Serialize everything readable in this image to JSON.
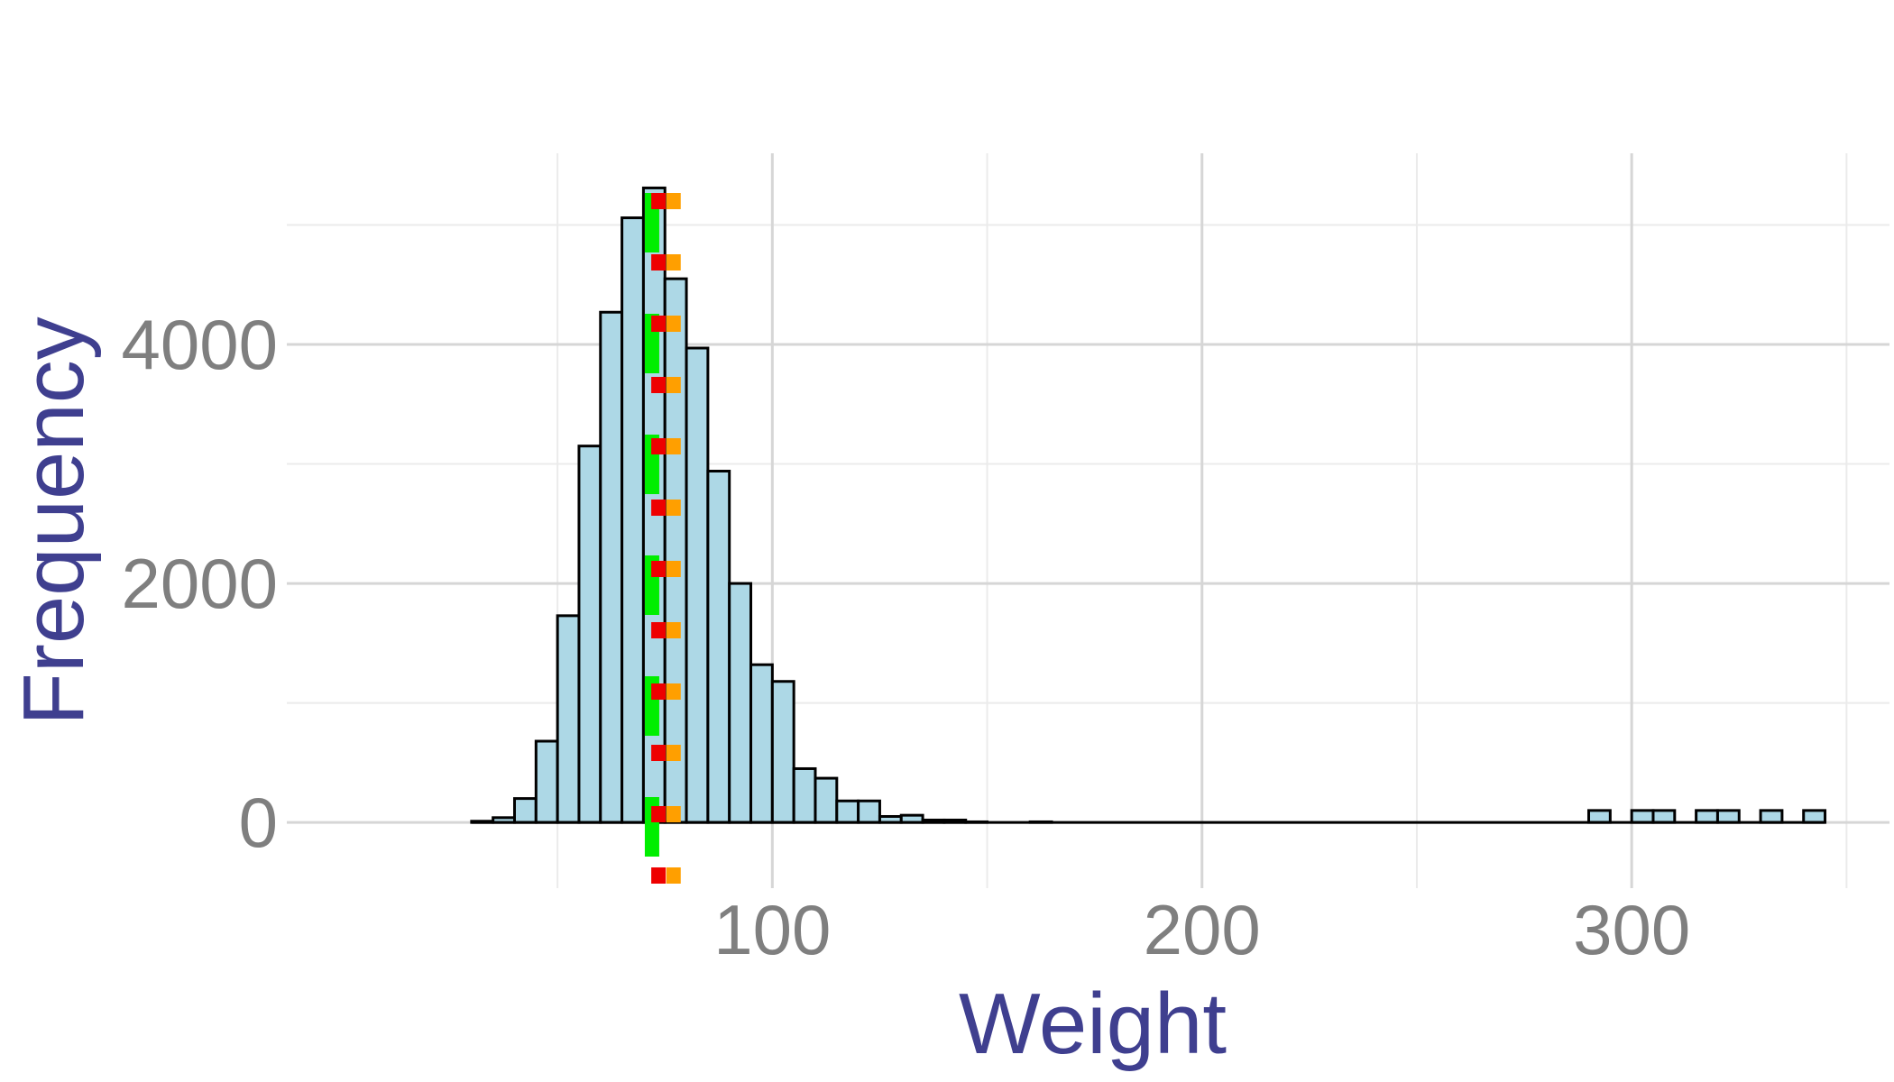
{
  "chart_data": {
    "type": "bar",
    "title": "",
    "xlabel": "Weight",
    "ylabel": "Frequency",
    "xlim": [
      -13,
      360
    ],
    "ylim": [
      -550,
      5600
    ],
    "x_ticks": [
      100,
      200,
      300
    ],
    "x_tick_labels": [
      "100",
      "200",
      "300"
    ],
    "y_ticks": [
      0,
      2000,
      4000
    ],
    "y_tick_labels": [
      "0",
      "2000",
      "4000"
    ],
    "x_minor_gridlines": [
      50,
      150,
      250,
      350
    ],
    "y_minor_gridlines": [
      1000,
      3000,
      5000
    ],
    "grid": true,
    "bin_width": 5,
    "bins": [
      {
        "start": 30,
        "count": 10
      },
      {
        "start": 35,
        "count": 40
      },
      {
        "start": 40,
        "count": 200
      },
      {
        "start": 45,
        "count": 680
      },
      {
        "start": 50,
        "count": 1730
      },
      {
        "start": 55,
        "count": 3150
      },
      {
        "start": 60,
        "count": 4270
      },
      {
        "start": 65,
        "count": 5060
      },
      {
        "start": 70,
        "count": 5310
      },
      {
        "start": 75,
        "count": 4550
      },
      {
        "start": 80,
        "count": 3970
      },
      {
        "start": 85,
        "count": 2940
      },
      {
        "start": 90,
        "count": 2000
      },
      {
        "start": 95,
        "count": 1320
      },
      {
        "start": 100,
        "count": 1180
      },
      {
        "start": 105,
        "count": 450
      },
      {
        "start": 110,
        "count": 370
      },
      {
        "start": 115,
        "count": 180
      },
      {
        "start": 120,
        "count": 180
      },
      {
        "start": 125,
        "count": 50
      },
      {
        "start": 130,
        "count": 60
      },
      {
        "start": 135,
        "count": 20
      },
      {
        "start": 140,
        "count": 20
      },
      {
        "start": 145,
        "count": 5
      },
      {
        "start": 150,
        "count": 0
      },
      {
        "start": 155,
        "count": 0
      },
      {
        "start": 160,
        "count": 5
      },
      {
        "start": 290,
        "count": 100
      },
      {
        "start": 300,
        "count": 100
      },
      {
        "start": 305,
        "count": 100
      },
      {
        "start": 315,
        "count": 100
      },
      {
        "start": 320,
        "count": 100
      },
      {
        "start": 330,
        "count": 100
      },
      {
        "start": 340,
        "count": 100
      }
    ],
    "baseline_range": [
      30,
      345
    ],
    "reference_lines": [
      {
        "value": 72,
        "color": "#00ee00",
        "style": "longdash"
      },
      {
        "value": 73.5,
        "color": "#ee0000",
        "style": "dashed"
      },
      {
        "value": 77,
        "color": "#ff9f00",
        "style": "dotted"
      }
    ],
    "colors": {
      "bar_fill": "#add8e6",
      "bar_stroke": "#000000",
      "major_grid": "#d6d6d6",
      "minor_grid": "#ebebeb",
      "tick_label": "#7f7f7f",
      "axis_title": "#3f3f8f"
    }
  }
}
